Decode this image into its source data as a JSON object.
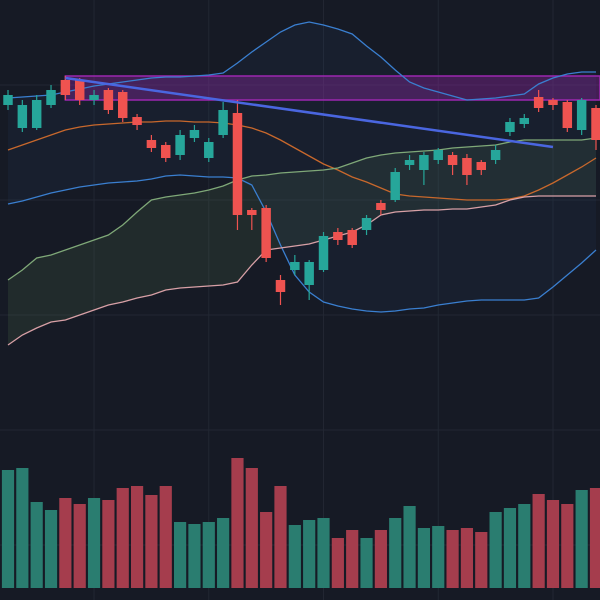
{
  "chart_data": {
    "type": "candlestick",
    "up_color": "#26a69a",
    "down_color": "#ef5350",
    "volume_up_color": "#2a7d70",
    "volume_down_color": "#a53d4d",
    "ylim": [
      0,
      600
    ],
    "yticks": [
      515,
      400,
      285,
      170,
      55
    ],
    "xgrid": [
      6,
      14,
      22,
      30,
      38
    ],
    "grid": true,
    "open": [
      495,
      472,
      472,
      495,
      520,
      520,
      500,
      510,
      508,
      483,
      460,
      455,
      445,
      462,
      442,
      465,
      487,
      390,
      392,
      320,
      330,
      315,
      330,
      368,
      370,
      370,
      397,
      400,
      435,
      430,
      440,
      445,
      442,
      438,
      440,
      468,
      476,
      503,
      500,
      498,
      470,
      492
    ],
    "high": [
      510,
      500,
      505,
      515,
      524,
      522,
      510,
      512,
      510,
      486,
      465,
      458,
      470,
      475,
      462,
      498,
      500,
      392,
      395,
      325,
      345,
      340,
      368,
      372,
      372,
      385,
      400,
      432,
      445,
      448,
      452,
      448,
      446,
      440,
      455,
      482,
      486,
      510,
      502,
      500,
      502,
      495
    ],
    "low": [
      490,
      468,
      470,
      492,
      500,
      495,
      495,
      486,
      478,
      470,
      448,
      438,
      440,
      458,
      438,
      462,
      370,
      370,
      338,
      295,
      325,
      300,
      328,
      355,
      352,
      365,
      385,
      398,
      430,
      415,
      436,
      425,
      415,
      425,
      436,
      464,
      472,
      488,
      490,
      468,
      465,
      450
    ],
    "close": [
      505,
      495,
      500,
      510,
      505,
      500,
      505,
      490,
      482,
      475,
      452,
      442,
      465,
      470,
      458,
      490,
      385,
      385,
      342,
      308,
      338,
      338,
      364,
      360,
      355,
      382,
      390,
      428,
      440,
      445,
      450,
      435,
      425,
      430,
      450,
      478,
      482,
      492,
      495,
      472,
      500,
      460
    ],
    "volume": [
      118,
      120,
      86,
      78,
      90,
      84,
      90,
      88,
      100,
      102,
      93,
      102,
      66,
      64,
      66,
      70,
      130,
      120,
      76,
      102,
      63,
      68,
      70,
      50,
      58,
      50,
      58,
      70,
      82,
      60,
      62,
      58,
      60,
      56,
      76,
      80,
      84,
      94,
      88,
      84,
      98,
      100
    ],
    "volume_lim": [
      0,
      200
    ],
    "series": [
      {
        "color": "#3a7fd0",
        "values": [
          502,
          503,
          504,
          505,
          508,
          511,
          514,
          516,
          518,
          520,
          522,
          523,
          523,
          524,
          525,
          527,
          537,
          548,
          558,
          568,
          575,
          578,
          575,
          571,
          566,
          554,
          543,
          530,
          518,
          512,
          508,
          504,
          500,
          501,
          502,
          504,
          506,
          516,
          522,
          526,
          528,
          528
        ]
      },
      {
        "color": "#3a7fd0",
        "values": [
          396,
          399,
          403,
          407,
          410,
          413,
          415,
          417,
          418,
          419,
          421,
          424,
          425,
          424,
          423,
          423,
          422,
          415,
          388,
          355,
          325,
          308,
          298,
          294,
          291,
          289,
          288,
          289,
          291,
          292,
          295,
          297,
          299,
          300,
          300,
          300,
          300,
          302,
          313,
          325,
          337,
          350
        ]
      },
      {
        "color": "#c8682c",
        "values": [
          450,
          455,
          460,
          465,
          470,
          473,
          475,
          476,
          477,
          478,
          478,
          479,
          479,
          478,
          478,
          477,
          475,
          472,
          467,
          460,
          452,
          444,
          436,
          430,
          423,
          418,
          412,
          406,
          404,
          403,
          402,
          401,
          400,
          400,
          400,
          401,
          404,
          410,
          417,
          425,
          433,
          442
        ]
      },
      {
        "color": "#7fa878",
        "values": [
          320,
          330,
          342,
          345,
          350,
          355,
          360,
          365,
          375,
          388,
          400,
          403,
          405,
          407,
          410,
          414,
          420,
          424,
          425,
          427,
          428,
          429,
          430,
          432,
          437,
          442,
          445,
          447,
          448,
          449,
          450,
          452,
          453,
          454,
          455,
          458,
          460,
          460,
          460,
          460,
          460,
          462
        ]
      },
      {
        "color": "#d8a0a6",
        "values": [
          255,
          265,
          272,
          278,
          280,
          285,
          290,
          295,
          298,
          302,
          305,
          310,
          312,
          313,
          314,
          315,
          318,
          335,
          350,
          352,
          354,
          356,
          360,
          364,
          368,
          375,
          385,
          388,
          389,
          390,
          390,
          391,
          391,
          393,
          395,
          400,
          403,
          404,
          404,
          404,
          404,
          404
        ]
      }
    ],
    "cloud": [
      3,
      4
    ],
    "cloud_color": "#4a6a4a",
    "zone": {
      "from": 4,
      "low": 500,
      "high": 524,
      "color": "#9c27b0"
    },
    "trendline": {
      "from": [
        4,
        522
      ],
      "to": [
        38,
        453
      ],
      "color": "#4a66e0"
    }
  }
}
